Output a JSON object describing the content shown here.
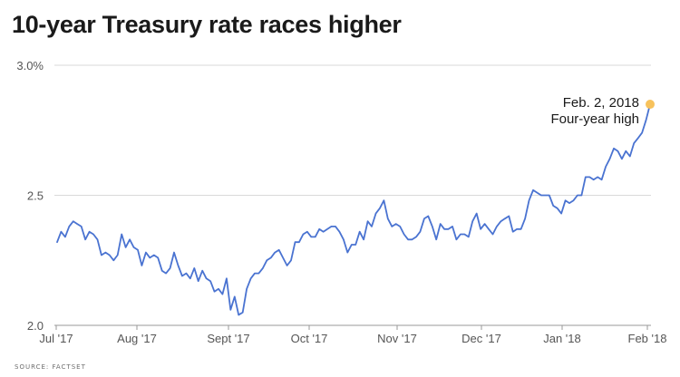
{
  "title": "10-year Treasury rate races higher",
  "source": "SOURCE: FACTSET",
  "colors": {
    "line": "#4a73d1",
    "highlight": "#f7c25c",
    "grid": "#d9d9d9",
    "axis": "#999999"
  },
  "chart_data": {
    "type": "line",
    "title": "10-year Treasury rate races higher",
    "xlabel": "",
    "ylabel": "",
    "ylim": [
      2.0,
      3.0
    ],
    "yticks": [
      "3.0%",
      "2.5",
      "2.0"
    ],
    "xticks": [
      "Jul '17",
      "Aug '17",
      "Sept '17",
      "Oct '17",
      "Nov '17",
      "Dec '17",
      "Jan '18",
      "Feb '18"
    ],
    "grid": true,
    "series": [
      {
        "values": [
          2.32,
          2.36,
          2.34,
          2.38,
          2.4,
          2.39,
          2.38,
          2.33,
          2.36,
          2.35,
          2.33,
          2.27,
          2.28,
          2.27,
          2.25,
          2.27,
          2.35,
          2.3,
          2.33,
          2.3,
          2.29,
          2.23,
          2.28,
          2.26,
          2.27,
          2.26,
          2.21,
          2.2,
          2.22,
          2.28,
          2.23,
          2.19,
          2.2,
          2.18,
          2.22,
          2.17,
          2.21,
          2.18,
          2.17,
          2.13,
          2.14,
          2.12,
          2.18,
          2.06,
          2.11,
          2.04,
          2.05,
          2.14,
          2.18,
          2.2,
          2.2,
          2.22,
          2.25,
          2.26,
          2.28,
          2.29,
          2.26,
          2.23,
          2.25,
          2.32,
          2.32,
          2.35,
          2.36,
          2.34,
          2.34,
          2.37,
          2.36,
          2.37,
          2.38,
          2.38,
          2.36,
          2.33,
          2.28,
          2.31,
          2.31,
          2.36,
          2.33,
          2.4,
          2.38,
          2.43,
          2.45,
          2.48,
          2.41,
          2.38,
          2.39,
          2.38,
          2.35,
          2.33,
          2.33,
          2.34,
          2.36,
          2.41,
          2.42,
          2.38,
          2.33,
          2.39,
          2.37,
          2.37,
          2.38,
          2.33,
          2.35,
          2.35,
          2.34,
          2.4,
          2.43,
          2.37,
          2.39,
          2.37,
          2.35,
          2.38,
          2.4,
          2.41,
          2.42,
          2.36,
          2.37,
          2.37,
          2.41,
          2.48,
          2.52,
          2.51,
          2.5,
          2.5,
          2.5,
          2.46,
          2.45,
          2.43,
          2.48,
          2.47,
          2.48,
          2.5,
          2.5,
          2.57,
          2.57,
          2.56,
          2.57,
          2.56,
          2.61,
          2.64,
          2.68,
          2.67,
          2.64,
          2.67,
          2.65,
          2.7,
          2.72,
          2.74,
          2.79,
          2.85
        ]
      }
    ],
    "annotation": {
      "date": "Feb. 2, 2018",
      "note": "Four-year high",
      "value": 2.85
    }
  }
}
